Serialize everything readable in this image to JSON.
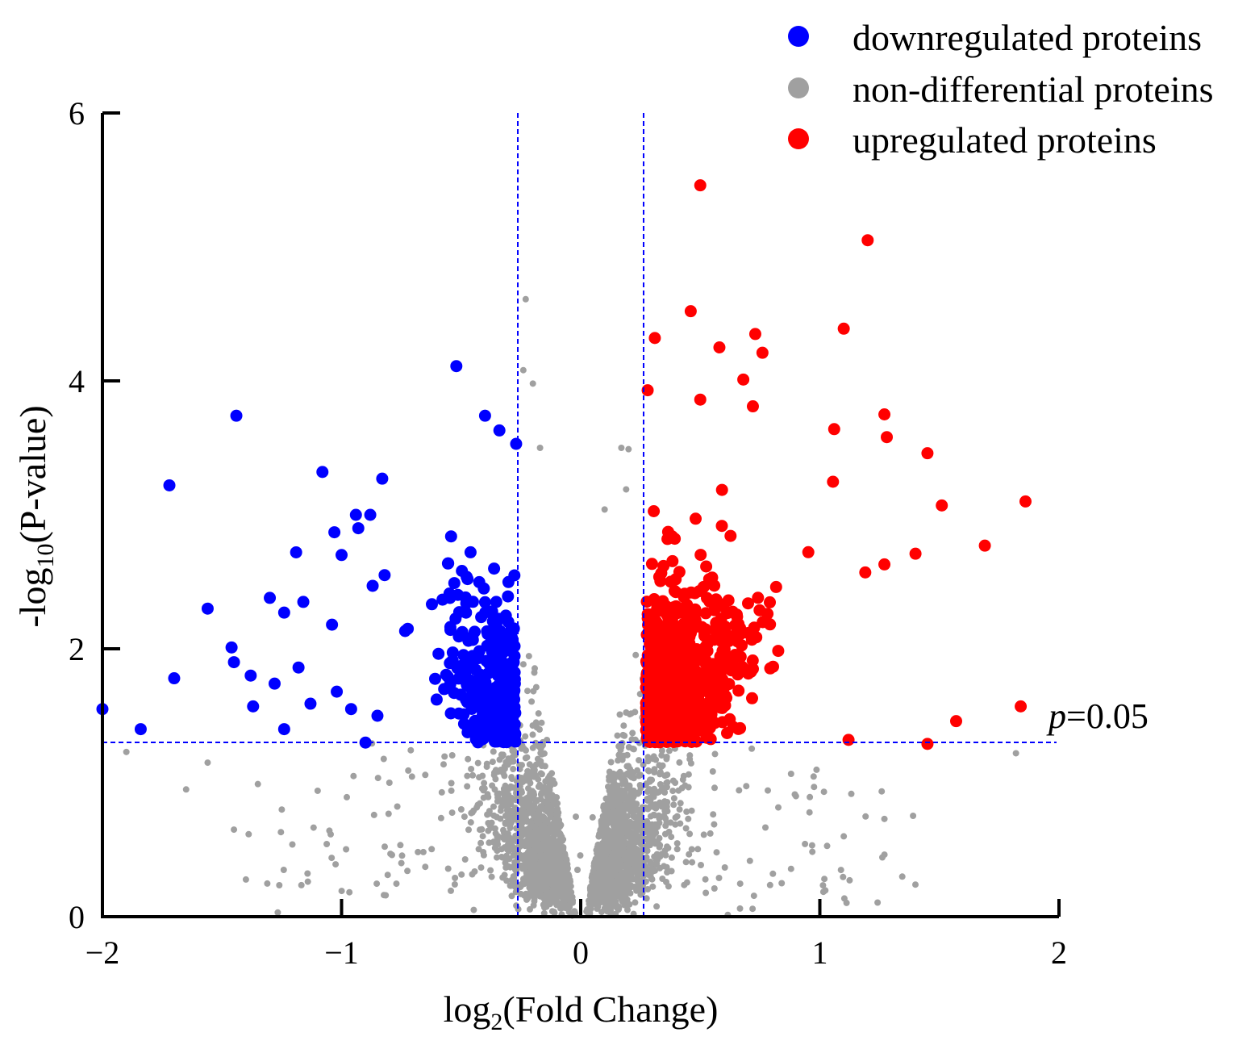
{
  "chart_data": {
    "type": "scatter",
    "title": "",
    "xlabel": {
      "base": "log",
      "sub": "2",
      "rest": "(Fold Change)"
    },
    "ylabel": {
      "prefix": "-log",
      "sub": "10",
      "rest": "(P-value)"
    },
    "xlim": [
      -2,
      2
    ],
    "ylim": [
      0,
      6
    ],
    "x_ticks": [
      -2,
      -1,
      0,
      1,
      2
    ],
    "x_tick_labels": [
      "−2",
      "−1",
      "0",
      "1",
      "2"
    ],
    "y_ticks": [
      0,
      2,
      4,
      6
    ],
    "y_tick_labels": [
      "0",
      "2",
      "4",
      "6"
    ],
    "thresholds": {
      "fold_change_log2": [
        -0.263,
        0.263
      ],
      "neg_log10_p": 1.301,
      "label_italic": "p",
      "label_rest": "=0.05"
    },
    "legend_position": "top-right",
    "series": [
      {
        "name": "downregulated proteins",
        "color": "#0000ff",
        "marker_size": "large",
        "n_points": 420,
        "highlight_points": [
          [
            -2.0,
            1.55
          ],
          [
            -1.84,
            1.4
          ],
          [
            -1.72,
            3.22
          ],
          [
            -1.7,
            1.78
          ],
          [
            -1.56,
            2.3
          ],
          [
            -1.44,
            3.74
          ],
          [
            -1.46,
            2.01
          ],
          [
            -1.45,
            1.9
          ],
          [
            -1.38,
            1.8
          ],
          [
            -1.37,
            1.57
          ],
          [
            -1.3,
            2.38
          ],
          [
            -1.28,
            1.74
          ],
          [
            -1.24,
            2.27
          ],
          [
            -1.24,
            1.4
          ],
          [
            -1.19,
            2.72
          ],
          [
            -1.18,
            1.86
          ],
          [
            -1.16,
            2.35
          ],
          [
            -1.13,
            1.59
          ],
          [
            -1.08,
            3.32
          ],
          [
            -1.04,
            2.18
          ],
          [
            -1.03,
            2.87
          ],
          [
            -1.02,
            1.68
          ],
          [
            -1.0,
            2.7
          ],
          [
            -0.96,
            1.55
          ],
          [
            -0.94,
            3.0
          ],
          [
            -0.93,
            2.9
          ],
          [
            -0.9,
            1.3
          ],
          [
            -0.88,
            3.0
          ],
          [
            -0.87,
            2.47
          ],
          [
            -0.85,
            1.5
          ],
          [
            -0.83,
            3.27
          ],
          [
            -0.82,
            2.55
          ],
          [
            -0.52,
            4.11
          ],
          [
            -0.4,
            3.74
          ],
          [
            -0.34,
            3.63
          ],
          [
            -0.27,
            3.53
          ]
        ]
      },
      {
        "name": "non-differential proteins",
        "color": "#a0a0a0",
        "marker_size": "small",
        "n_points": 2600,
        "highlight_points": [
          [
            -1.9,
            1.23
          ],
          [
            -1.65,
            0.95
          ],
          [
            -1.56,
            1.15
          ],
          [
            -1.45,
            0.65
          ],
          [
            -1.35,
            0.99
          ],
          [
            -1.25,
            0.8
          ],
          [
            -1.1,
            0.94
          ],
          [
            -0.95,
            1.05
          ],
          [
            -0.8,
            1.0
          ],
          [
            -0.75,
            0.4
          ],
          [
            -0.23,
            4.61
          ],
          [
            -0.24,
            4.08
          ],
          [
            -0.2,
            3.98
          ],
          [
            -0.17,
            3.5
          ],
          [
            0.1,
            3.04
          ],
          [
            0.17,
            3.5
          ],
          [
            0.2,
            3.49
          ],
          [
            0.19,
            3.19
          ],
          [
            0.9,
            0.9
          ],
          [
            1.1,
            0.6
          ],
          [
            1.27,
            0.73
          ],
          [
            1.82,
            1.22
          ]
        ]
      },
      {
        "name": "upregulated proteins",
        "color": "#ff0000",
        "marker_size": "large",
        "n_points": 980,
        "highlight_points": [
          [
            0.5,
            5.46
          ],
          [
            1.2,
            5.05
          ],
          [
            0.46,
            4.52
          ],
          [
            1.1,
            4.39
          ],
          [
            0.73,
            4.35
          ],
          [
            0.31,
            4.32
          ],
          [
            0.58,
            4.25
          ],
          [
            0.76,
            4.21
          ],
          [
            0.68,
            4.01
          ],
          [
            0.28,
            3.93
          ],
          [
            0.5,
            3.86
          ],
          [
            0.72,
            3.81
          ],
          [
            1.06,
            3.64
          ],
          [
            1.27,
            3.75
          ],
          [
            1.28,
            3.58
          ],
          [
            1.45,
            3.46
          ],
          [
            1.51,
            3.07
          ],
          [
            1.86,
            3.1
          ],
          [
            1.69,
            2.77
          ],
          [
            1.4,
            2.71
          ],
          [
            1.19,
            2.57
          ],
          [
            1.27,
            2.63
          ],
          [
            1.84,
            1.57
          ],
          [
            1.57,
            1.46
          ],
          [
            1.45,
            1.29
          ],
          [
            1.12,
            1.32
          ]
        ]
      }
    ]
  }
}
